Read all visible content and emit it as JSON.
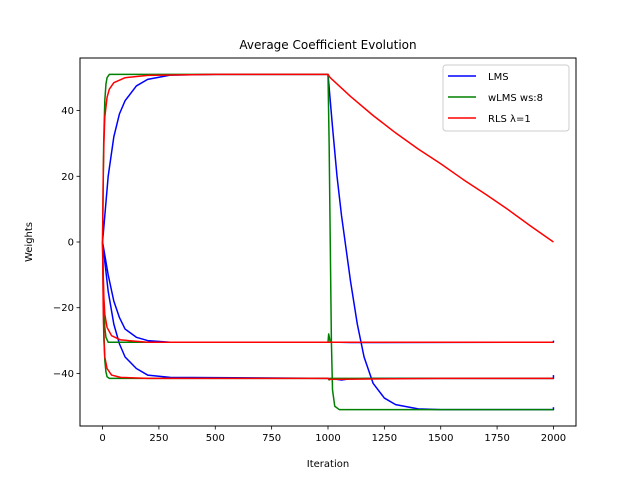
{
  "chart_data": {
    "type": "line",
    "title": "Average Coefficient Evolution",
    "xlabel": "Iteration",
    "ylabel": "Weights",
    "xlim": [
      -100,
      2100
    ],
    "ylim": [
      -56,
      56
    ],
    "xticks": [
      0,
      250,
      500,
      750,
      1000,
      1250,
      1500,
      1750,
      2000
    ],
    "yticks": [
      -40,
      -20,
      0,
      20,
      40
    ],
    "ytick_labels": [
      "−40",
      "−20",
      "0",
      "20",
      "40"
    ],
    "grid": false,
    "legend_position": "upper right",
    "series": [
      {
        "name": "LMS",
        "color": "#0000ff",
        "lines": [
          [
            [
              0,
              0
            ],
            [
              25,
              20
            ],
            [
              50,
              32
            ],
            [
              75,
              39
            ],
            [
              100,
              43
            ],
            [
              150,
              47.5
            ],
            [
              200,
              49.5
            ],
            [
              300,
              50.8
            ],
            [
              500,
              51
            ],
            [
              999,
              51
            ],
            [
              1000,
              51
            ],
            [
              1020,
              35
            ],
            [
              1040,
              20
            ],
            [
              1060,
              8
            ],
            [
              1080,
              -2
            ],
            [
              1100,
              -12
            ],
            [
              1130,
              -25
            ],
            [
              1160,
              -35
            ],
            [
              1200,
              -43
            ],
            [
              1250,
              -47.5
            ],
            [
              1300,
              -49.5
            ],
            [
              1400,
              -50.8
            ],
            [
              1500,
              -51
            ],
            [
              2000,
              -51
            ],
            [
              2000,
              -50.3
            ]
          ],
          [
            [
              0,
              0
            ],
            [
              25,
              -10
            ],
            [
              50,
              -18
            ],
            [
              75,
              -23
            ],
            [
              100,
              -26.5
            ],
            [
              150,
              -29
            ],
            [
              200,
              -30
            ],
            [
              300,
              -30.5
            ],
            [
              999,
              -30.5
            ],
            [
              1050,
              -30.5
            ],
            [
              1100,
              -30.6
            ],
            [
              2000,
              -30.5
            ],
            [
              2000,
              -30
            ]
          ],
          [
            [
              0,
              0
            ],
            [
              25,
              -15
            ],
            [
              50,
              -25
            ],
            [
              75,
              -31
            ],
            [
              100,
              -35
            ],
            [
              150,
              -38.5
            ],
            [
              200,
              -40.5
            ],
            [
              300,
              -41.2
            ],
            [
              999,
              -41.5
            ],
            [
              1030,
              -41.7
            ],
            [
              1060,
              -42
            ],
            [
              1090,
              -41.7
            ],
            [
              1200,
              -41.5
            ],
            [
              1500,
              -41.5
            ],
            [
              2000,
              -41.5
            ],
            [
              2000,
              -40.5
            ]
          ]
        ]
      },
      {
        "name": "wLMS ws:8",
        "color": "#008000",
        "lines": [
          [
            [
              0,
              0
            ],
            [
              5,
              30
            ],
            [
              10,
              43
            ],
            [
              15,
              48
            ],
            [
              20,
              50
            ],
            [
              30,
              51
            ],
            [
              50,
              51
            ],
            [
              999,
              51
            ],
            [
              1000,
              51
            ],
            [
              1005,
              30
            ],
            [
              1010,
              0
            ],
            [
              1015,
              -30
            ],
            [
              1020,
              -45
            ],
            [
              1030,
              -50
            ],
            [
              1050,
              -51
            ],
            [
              2000,
              -51
            ]
          ],
          [
            [
              0,
              0
            ],
            [
              5,
              -18
            ],
            [
              10,
              -26
            ],
            [
              15,
              -29
            ],
            [
              25,
              -30.5
            ],
            [
              999,
              -30.5
            ],
            [
              1000,
              -30.5
            ],
            [
              1003,
              -28
            ],
            [
              1006,
              -29
            ],
            [
              1010,
              -30.5
            ],
            [
              2000,
              -30.5
            ]
          ],
          [
            [
              0,
              0
            ],
            [
              5,
              -25
            ],
            [
              10,
              -36
            ],
            [
              15,
              -39.5
            ],
            [
              20,
              -41
            ],
            [
              30,
              -41.5
            ],
            [
              999,
              -41.5
            ],
            [
              1000,
              -41.5
            ],
            [
              1005,
              -42
            ],
            [
              1010,
              -41.5
            ],
            [
              2000,
              -41.5
            ]
          ]
        ]
      },
      {
        "name": "RLS λ=1",
        "color": "#ff0000",
        "lines": [
          [
            [
              0,
              0
            ],
            [
              3,
              20
            ],
            [
              6,
              30
            ],
            [
              10,
              38
            ],
            [
              20,
              44
            ],
            [
              30,
              46.5
            ],
            [
              50,
              48.5
            ],
            [
              100,
              50
            ],
            [
              200,
              50.7
            ],
            [
              500,
              51
            ],
            [
              1000,
              51
            ],
            [
              1010,
              50
            ],
            [
              1100,
              44.3
            ],
            [
              1200,
              38.5
            ],
            [
              1300,
              33.2
            ],
            [
              1400,
              28.3
            ],
            [
              1500,
              23.8
            ],
            [
              1600,
              19
            ],
            [
              1700,
              14.5
            ],
            [
              1800,
              9.8
            ],
            [
              1900,
              4.8
            ],
            [
              2000,
              0
            ]
          ],
          [
            [
              0,
              0
            ],
            [
              3,
              -10
            ],
            [
              6,
              -17
            ],
            [
              10,
              -22
            ],
            [
              20,
              -26
            ],
            [
              40,
              -28.5
            ],
            [
              80,
              -29.8
            ],
            [
              200,
              -30.5
            ],
            [
              2000,
              -30.5
            ]
          ],
          [
            [
              0,
              0
            ],
            [
              3,
              -20
            ],
            [
              6,
              -30
            ],
            [
              10,
              -35
            ],
            [
              20,
              -38.5
            ],
            [
              40,
              -40.5
            ],
            [
              80,
              -41.2
            ],
            [
              200,
              -41.5
            ],
            [
              1000,
              -41.5
            ],
            [
              1005,
              -41.8
            ],
            [
              1500,
              -41.5
            ],
            [
              2000,
              -41.5
            ]
          ]
        ]
      }
    ]
  }
}
